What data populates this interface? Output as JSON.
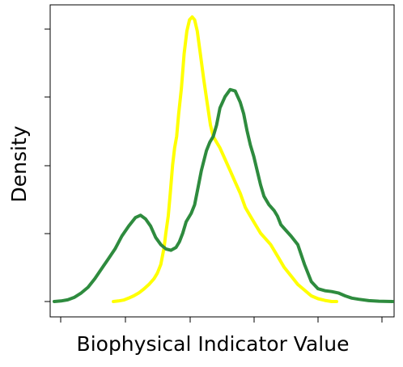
{
  "chart_data": {
    "type": "line",
    "xlabel": "Biophysical Indicator Value",
    "ylabel": "Density",
    "x_tick_labels": [],
    "y_tick_labels": [],
    "xlim": [
      0,
      100
    ],
    "ylim": [
      0,
      1.0
    ],
    "grid": false,
    "legend": "none",
    "series": [
      {
        "color": "#ffff00",
        "points": [
          [
            17.5,
            0.0
          ],
          [
            19.0,
            0.002
          ],
          [
            20.5,
            0.005
          ],
          [
            22.0,
            0.012
          ],
          [
            23.5,
            0.02
          ],
          [
            25.0,
            0.03
          ],
          [
            26.5,
            0.044
          ],
          [
            28.0,
            0.06
          ],
          [
            29.5,
            0.08
          ],
          [
            30.5,
            0.1
          ],
          [
            31.5,
            0.13
          ],
          [
            32.5,
            0.19
          ],
          [
            33.0,
            0.24
          ],
          [
            33.7,
            0.3
          ],
          [
            34.3,
            0.38
          ],
          [
            35.0,
            0.48
          ],
          [
            35.6,
            0.54
          ],
          [
            36.2,
            0.58
          ],
          [
            36.8,
            0.66
          ],
          [
            37.6,
            0.75
          ],
          [
            38.4,
            0.87
          ],
          [
            39.2,
            0.95
          ],
          [
            40.0,
            0.99
          ],
          [
            40.8,
            1.0
          ],
          [
            41.5,
            0.99
          ],
          [
            42.3,
            0.95
          ],
          [
            43.2,
            0.87
          ],
          [
            44.2,
            0.78
          ],
          [
            45.2,
            0.7
          ],
          [
            46.2,
            0.62
          ],
          [
            47.0,
            0.58
          ],
          [
            48.0,
            0.56
          ],
          [
            49.0,
            0.54
          ],
          [
            50.5,
            0.5
          ],
          [
            52.0,
            0.46
          ],
          [
            53.5,
            0.42
          ],
          [
            55.0,
            0.38
          ],
          [
            56.5,
            0.33
          ],
          [
            58.0,
            0.3
          ],
          [
            59.5,
            0.27
          ],
          [
            61.0,
            0.24
          ],
          [
            62.5,
            0.22
          ],
          [
            64.0,
            0.2
          ],
          [
            66.0,
            0.16
          ],
          [
            68.0,
            0.12
          ],
          [
            70.0,
            0.09
          ],
          [
            72.0,
            0.06
          ],
          [
            74.0,
            0.04
          ],
          [
            76.0,
            0.02
          ],
          [
            78.0,
            0.01
          ],
          [
            80.0,
            0.004
          ],
          [
            82.0,
            0.0
          ],
          [
            83.5,
            0.0
          ]
        ]
      },
      {
        "color": "#2e8b3e",
        "points": [
          [
            0.0,
            0.0
          ],
          [
            2.0,
            0.002
          ],
          [
            4.0,
            0.006
          ],
          [
            6.0,
            0.015
          ],
          [
            8.0,
            0.03
          ],
          [
            10.0,
            0.05
          ],
          [
            12.0,
            0.08
          ],
          [
            14.0,
            0.115
          ],
          [
            16.0,
            0.15
          ],
          [
            18.0,
            0.185
          ],
          [
            20.0,
            0.23
          ],
          [
            22.0,
            0.265
          ],
          [
            24.0,
            0.295
          ],
          [
            25.5,
            0.303
          ],
          [
            27.0,
            0.29
          ],
          [
            28.5,
            0.265
          ],
          [
            30.0,
            0.225
          ],
          [
            31.5,
            0.2
          ],
          [
            33.0,
            0.185
          ],
          [
            34.5,
            0.18
          ],
          [
            36.0,
            0.19
          ],
          [
            37.0,
            0.21
          ],
          [
            38.0,
            0.24
          ],
          [
            39.0,
            0.28
          ],
          [
            40.5,
            0.31
          ],
          [
            41.5,
            0.34
          ],
          [
            42.5,
            0.4
          ],
          [
            43.5,
            0.46
          ],
          [
            45.0,
            0.53
          ],
          [
            46.0,
            0.56
          ],
          [
            47.0,
            0.58
          ],
          [
            48.0,
            0.62
          ],
          [
            49.0,
            0.68
          ],
          [
            50.5,
            0.72
          ],
          [
            52.0,
            0.745
          ],
          [
            53.5,
            0.74
          ],
          [
            55.0,
            0.7
          ],
          [
            56.0,
            0.66
          ],
          [
            57.0,
            0.6
          ],
          [
            58.0,
            0.55
          ],
          [
            59.0,
            0.51
          ],
          [
            60.0,
            0.46
          ],
          [
            61.0,
            0.41
          ],
          [
            62.0,
            0.37
          ],
          [
            63.5,
            0.34
          ],
          [
            65.0,
            0.32
          ],
          [
            66.0,
            0.3
          ],
          [
            67.0,
            0.27
          ],
          [
            68.5,
            0.25
          ],
          [
            70.0,
            0.23
          ],
          [
            72.0,
            0.2
          ],
          [
            74.0,
            0.13
          ],
          [
            76.0,
            0.07
          ],
          [
            78.0,
            0.045
          ],
          [
            80.0,
            0.038
          ],
          [
            82.0,
            0.035
          ],
          [
            84.0,
            0.03
          ],
          [
            86.0,
            0.02
          ],
          [
            88.0,
            0.012
          ],
          [
            90.0,
            0.008
          ],
          [
            93.0,
            0.003
          ],
          [
            96.0,
            0.001
          ],
          [
            100.0,
            0.0
          ]
        ]
      }
    ]
  }
}
